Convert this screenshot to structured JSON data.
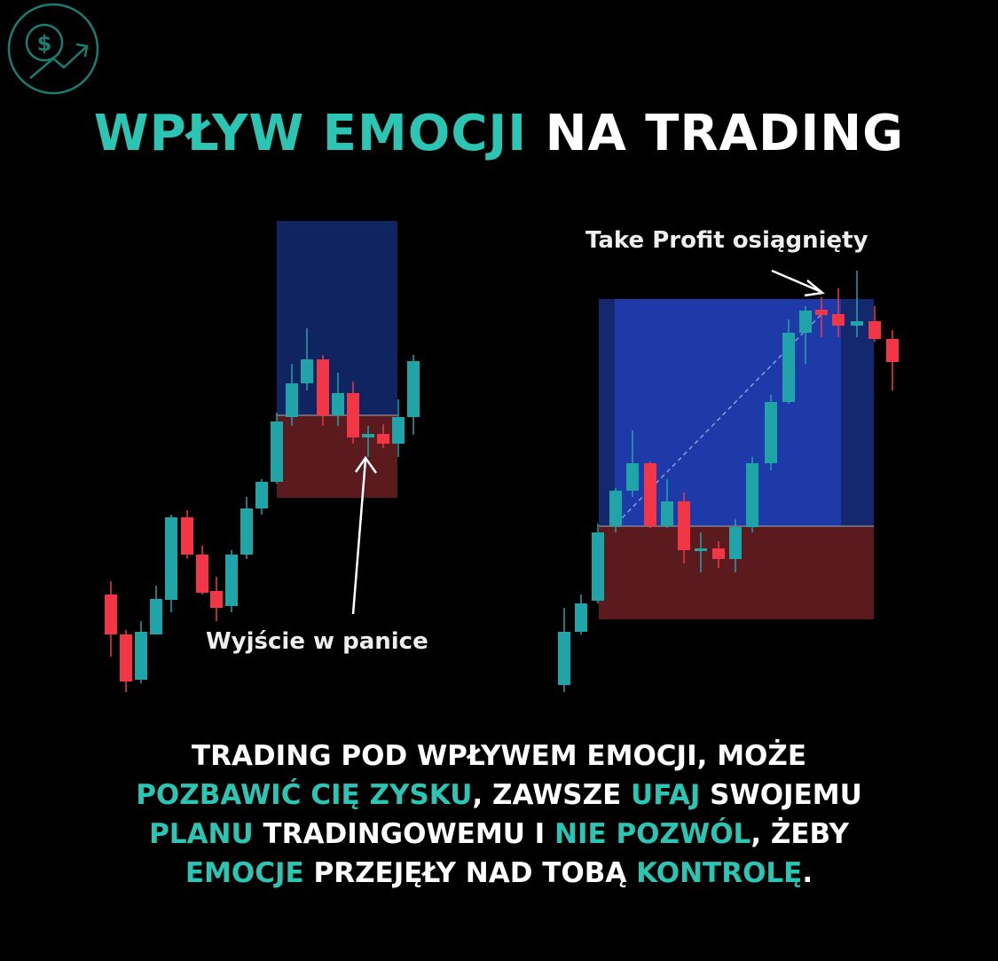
{
  "title": {
    "highlight": "WPŁYW EMOCJI",
    "rest": "NA TRADING"
  },
  "annotations": {
    "left": "Wyjście w panice",
    "right": "Take Profit osiągnięty"
  },
  "body": [
    [
      "TRADING POD WPŁYWEM EMOCJI, MOŻE"
    ],
    [
      "POZBAWIĆ CIĘ ZYSKU",
      ", ZAWSZE ",
      "UFAJ",
      " SWOJEMU"
    ],
    [
      "PLANU",
      " TRADINGOWEMU I ",
      "NIE POZWÓL",
      ", ŻEBY"
    ],
    [
      "EMOCJE",
      " PRZEJĘŁY NAD TOBĄ ",
      "KONTROLĘ",
      "."
    ]
  ]
}
